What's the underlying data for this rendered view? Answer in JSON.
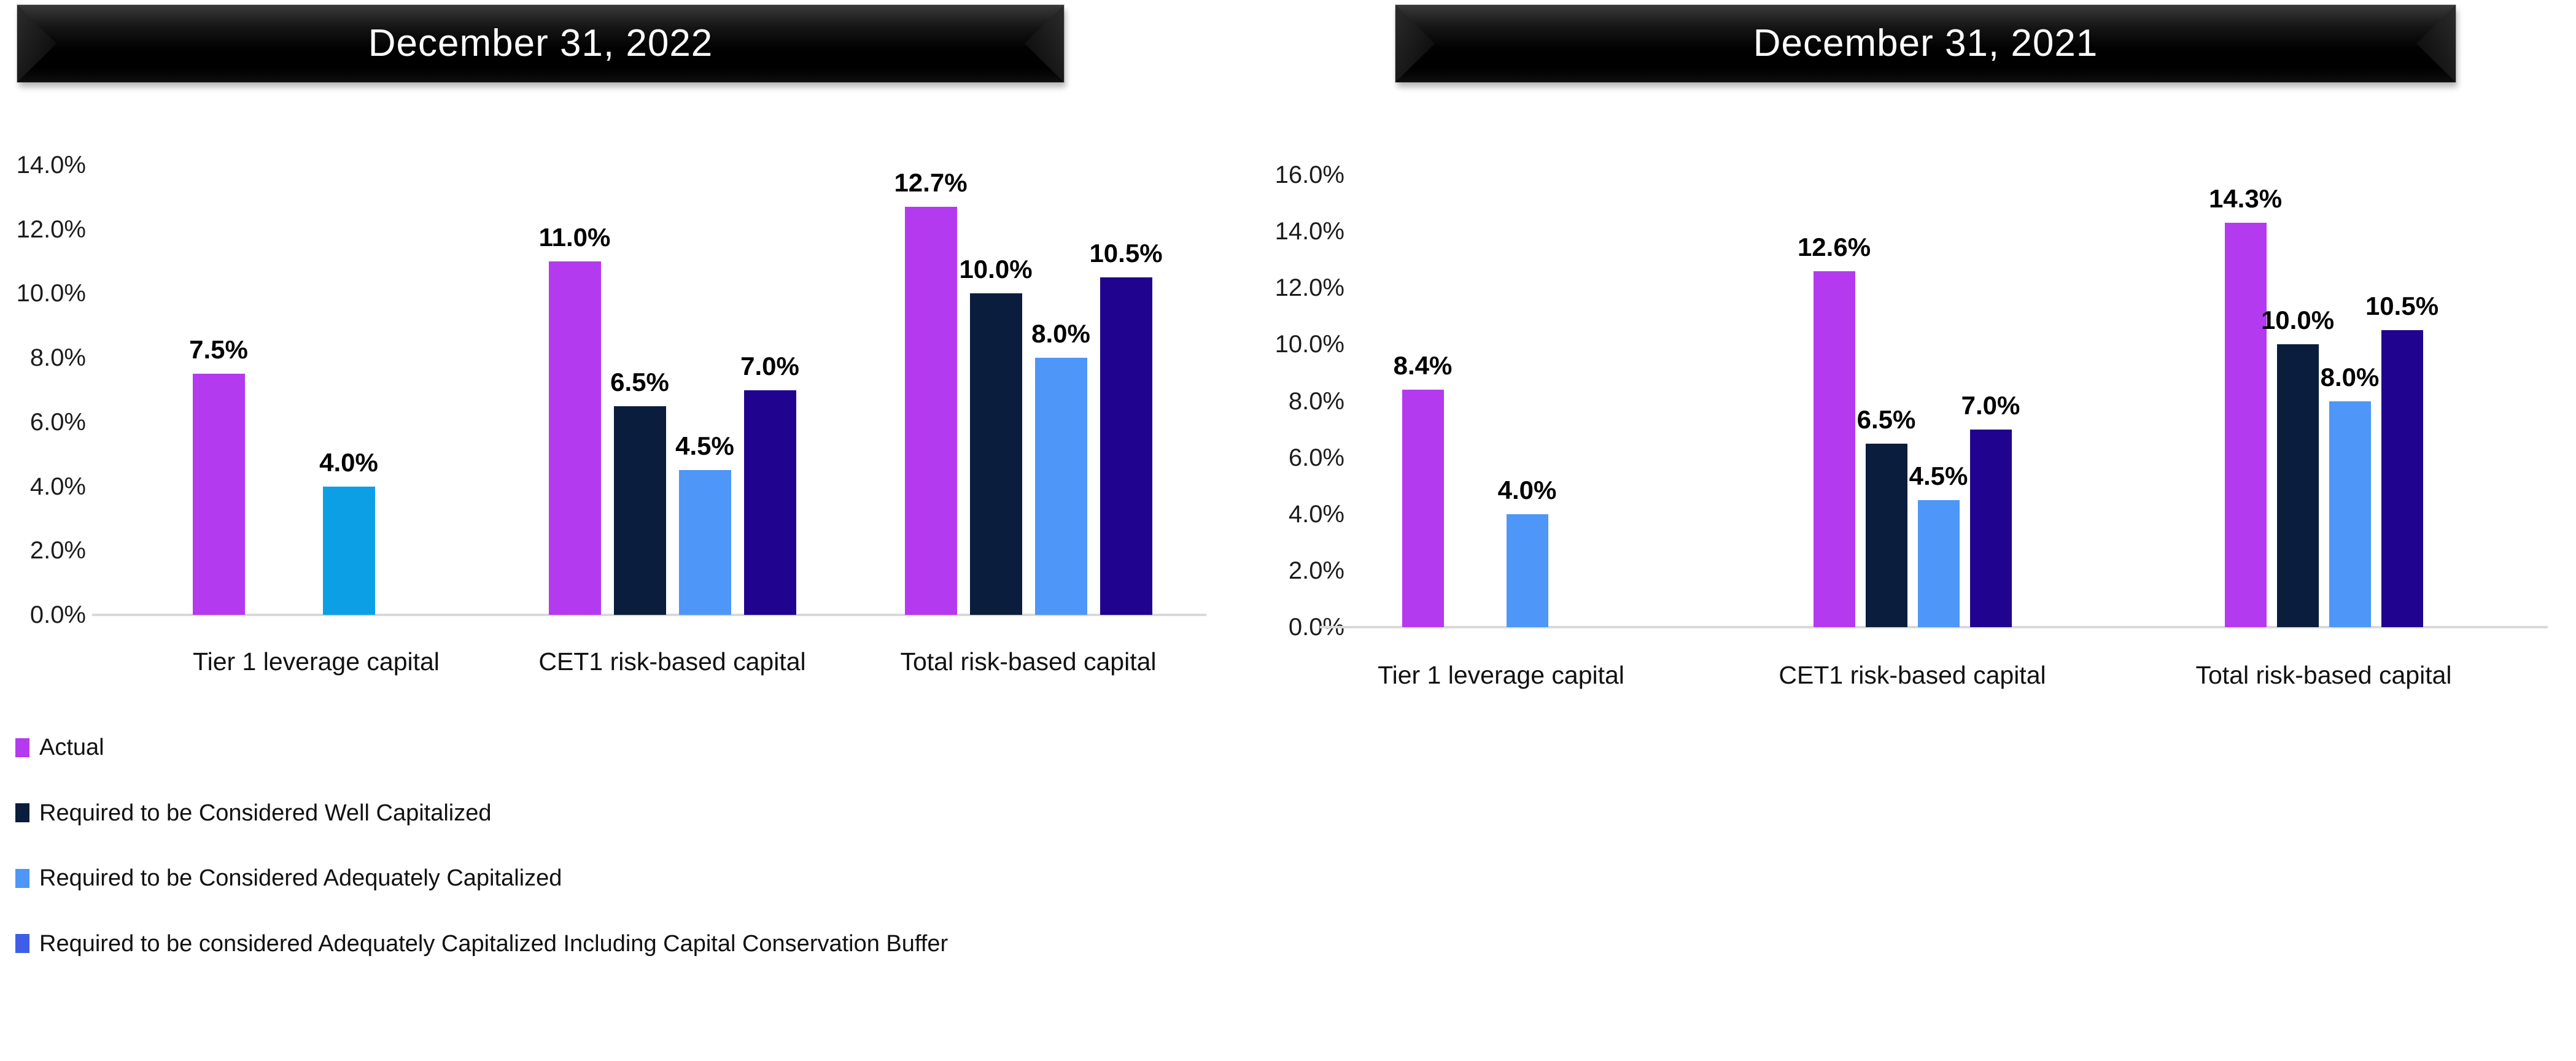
{
  "chart_data": {
    "type": "bar",
    "layout_hint": {
      "grid": false,
      "legend_position": "bottom-left",
      "value_labels": "above-bars"
    },
    "series_colors": [
      "#B43AEF",
      "#0A1D3D",
      "#4E96F7",
      "#20038E"
    ],
    "charts": [
      {
        "title": "December 31, 2022",
        "categories": [
          "Tier 1 leverage capital",
          "CET1 risk-based capital",
          "Total risk-based capital"
        ],
        "ylim": [
          0,
          14
        ],
        "y_ticks": [
          "0.0%",
          "2.0%",
          "4.0%",
          "6.0%",
          "8.0%",
          "10.0%",
          "12.0%",
          "14.0%"
        ],
        "series": [
          {
            "name": "Actual",
            "values": [
              7.5,
              11.0,
              12.7
            ],
            "labels": [
              "7.5%",
              "11.0%",
              "12.7%"
            ]
          },
          {
            "name": "Required to be Considered Well Capitalized",
            "values": [
              null,
              6.5,
              10.0
            ],
            "labels": [
              null,
              "6.5%",
              "10.0%"
            ]
          },
          {
            "name": "Required to be Considered Adequately Capitalized",
            "values": [
              4.0,
              4.5,
              8.0
            ],
            "labels": [
              "4.0%",
              "4.5%",
              "8.0%"
            ],
            "color_overrides": {
              "0": "#0D9FE6"
            }
          },
          {
            "name": "Required to be considered Adequately Capitalized Including Capital Conservation Buffer",
            "values": [
              null,
              7.0,
              10.5
            ],
            "labels": [
              null,
              "7.0%",
              "10.5%"
            ]
          }
        ]
      },
      {
        "title": "December 31, 2021",
        "categories": [
          "Tier 1 leverage capital",
          "CET1 risk-based capital",
          "Total risk-based capital"
        ],
        "ylim": [
          0,
          16
        ],
        "y_ticks": [
          "0.0%",
          "2.0%",
          "4.0%",
          "6.0%",
          "8.0%",
          "10.0%",
          "12.0%",
          "14.0%",
          "16.0%"
        ],
        "series": [
          {
            "name": "Actual",
            "values": [
              8.4,
              12.6,
              14.3
            ],
            "labels": [
              "8.4%",
              "12.6%",
              "14.3%"
            ]
          },
          {
            "name": "Required to be Considered Well Capitalized",
            "values": [
              null,
              6.5,
              10.0
            ],
            "labels": [
              null,
              "6.5%",
              "10.0%"
            ]
          },
          {
            "name": "Required to be Considered Adequately Capitalized",
            "values": [
              4.0,
              4.5,
              8.0
            ],
            "labels": [
              "4.0%",
              "4.5%",
              "8.0%"
            ]
          },
          {
            "name": "Required to be considered Adequately Capitalized Including Capital Conservation Buffer",
            "values": [
              null,
              7.0,
              10.5
            ],
            "labels": [
              null,
              "7.0%",
              "10.5%"
            ]
          }
        ]
      }
    ],
    "legend": [
      {
        "label": "Actual",
        "swatch": "#B43AEF"
      },
      {
        "label": "Required to be Considered Well Capitalized",
        "swatch": "#0A1D3D"
      },
      {
        "label": "Required to be Considered Adequately Capitalized",
        "swatch": "#4E96F7"
      },
      {
        "label": "Required to be considered Adequately Capitalized Including Capital Conservation Buffer",
        "swatch": "#3E5EE8"
      }
    ]
  }
}
